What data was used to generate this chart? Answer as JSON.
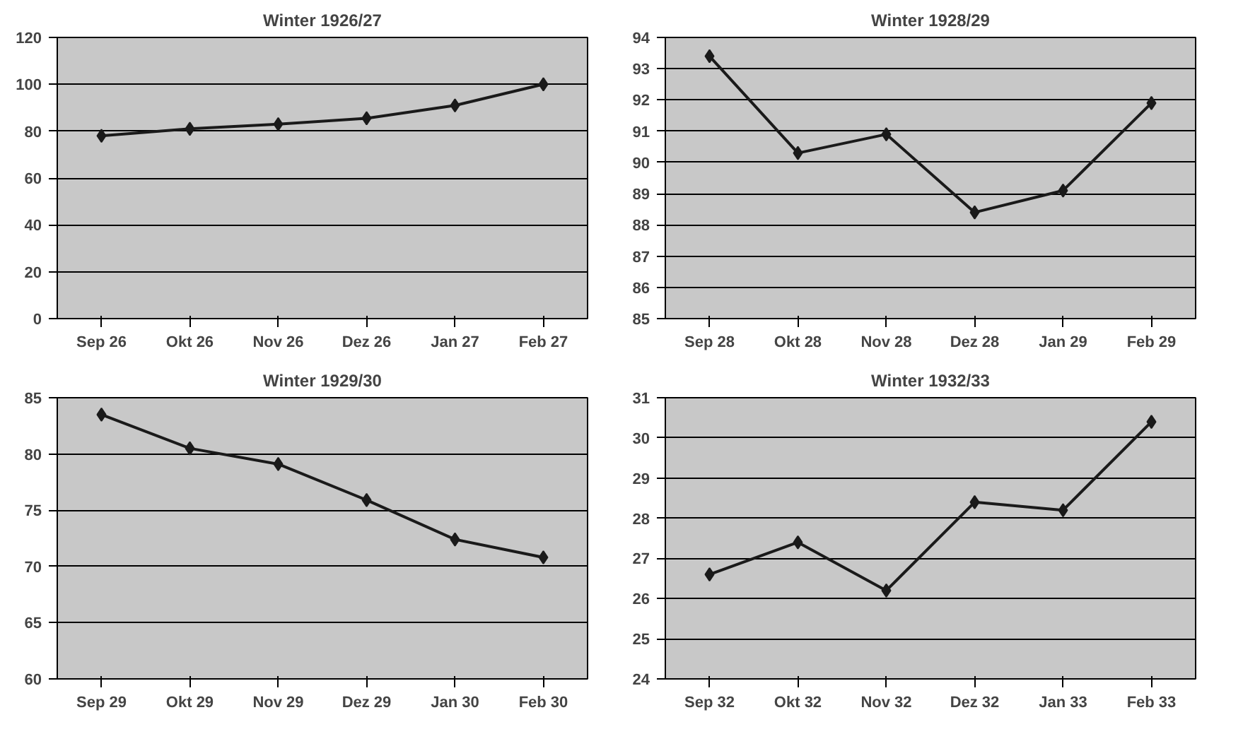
{
  "chart_data": [
    {
      "type": "line",
      "title": "Winter 1926/27",
      "categories": [
        "Sep 26",
        "Okt 26",
        "Nov 26",
        "Dez 26",
        "Jan 27",
        "Feb 27"
      ],
      "series": [
        {
          "color": "#1a1a1a",
          "values": [
            78,
            81,
            83,
            85.5,
            91,
            100
          ]
        }
      ],
      "ylim": [
        0,
        120
      ],
      "yticks": [
        0,
        20,
        40,
        60,
        80,
        100,
        120
      ],
      "grid": "y",
      "marker": "diamond",
      "line_style": "solid"
    },
    {
      "type": "line",
      "title": "Winter 1928/29",
      "categories": [
        "Sep 28",
        "Okt 28",
        "Nov 28",
        "Dez 28",
        "Jan 29",
        "Feb 29"
      ],
      "series": [
        {
          "color": "#1a1a1a",
          "values": [
            93.4,
            90.3,
            90.9,
            88.4,
            89.1,
            91.9
          ]
        }
      ],
      "ylim": [
        85,
        94
      ],
      "yticks": [
        85,
        86,
        87,
        88,
        89,
        90,
        91,
        92,
        93,
        94
      ],
      "grid": "y",
      "marker": "diamond",
      "line_style": "solid"
    },
    {
      "type": "line",
      "title": "Winter 1929/30",
      "categories": [
        "Sep 29",
        "Okt 29",
        "Nov 29",
        "Dez 29",
        "Jan 30",
        "Feb 30"
      ],
      "series": [
        {
          "color": "#1a1a1a",
          "values": [
            83.5,
            80.5,
            79.1,
            75.9,
            72.4,
            70.8
          ]
        }
      ],
      "ylim": [
        60,
        85
      ],
      "yticks": [
        60,
        65,
        70,
        75,
        80,
        85
      ],
      "grid": "y",
      "marker": "diamond",
      "line_style": "solid"
    },
    {
      "type": "line",
      "title": "Winter 1932/33",
      "categories": [
        "Sep 32",
        "Okt 32",
        "Nov 32",
        "Dez 32",
        "Jan 33",
        "Feb 33"
      ],
      "series": [
        {
          "color": "#1a1a1a",
          "values": [
            26.6,
            27.4,
            26.2,
            28.4,
            28.2,
            30.4
          ]
        }
      ],
      "ylim": [
        24,
        31
      ],
      "yticks": [
        24,
        25,
        26,
        27,
        28,
        29,
        30,
        31
      ],
      "grid": "y",
      "marker": "diamond",
      "line_style": "solid"
    }
  ]
}
